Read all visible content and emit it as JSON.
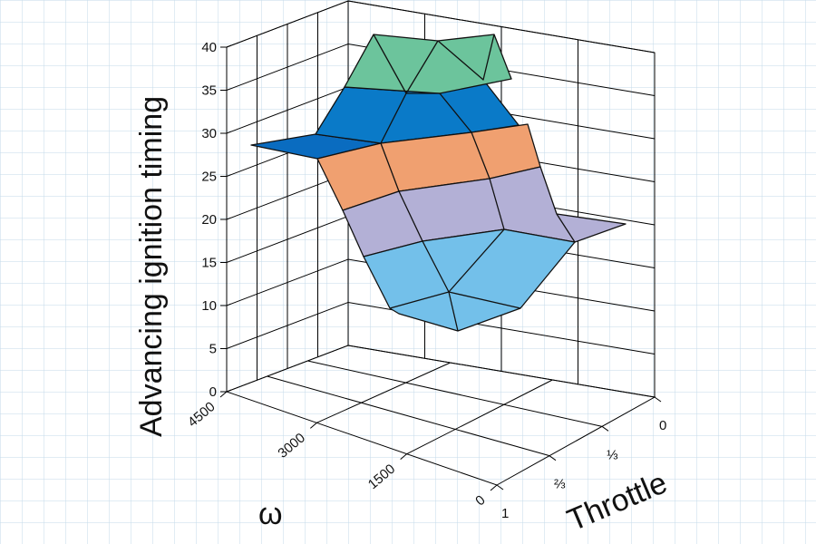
{
  "chart_data": {
    "type": "surface",
    "zlabel": "Advancing ignition timing",
    "xlabel": "ω",
    "ylabel": "Throttle",
    "zlim": [
      0,
      40
    ],
    "z_ticks": [
      "0",
      "5",
      "10",
      "15",
      "20",
      "25",
      "30",
      "35",
      "40"
    ],
    "omega_ticks": [
      "4500",
      "3000",
      "1500",
      "0"
    ],
    "throttle_ticks": [
      "0",
      "⅓",
      "⅔",
      "1"
    ],
    "bands": [
      {
        "range": [
          5,
          15
        ],
        "color": "#73c0ea"
      },
      {
        "range": [
          15,
          20
        ],
        "color": "#b3b0d6"
      },
      {
        "range": [
          20,
          25
        ],
        "color": "#f0a070"
      },
      {
        "range": [
          25,
          30
        ],
        "color": "#0a6cc0"
      },
      {
        "range": [
          30,
          35
        ],
        "color": "#0a7ac8"
      },
      {
        "range": [
          35,
          40
        ],
        "color": "#6cc49c"
      }
    ],
    "grid": true
  }
}
